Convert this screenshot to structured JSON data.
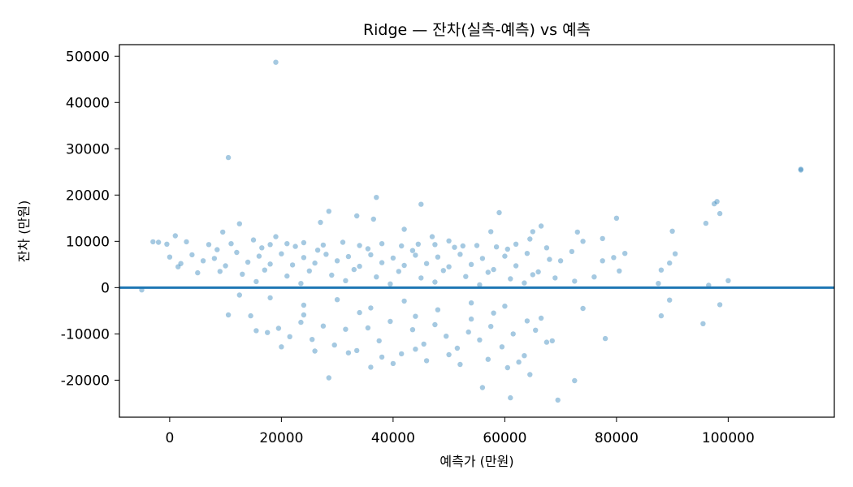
{
  "chart_data": {
    "type": "scatter",
    "title": "Ridge — 잔차(실측-예측) vs 예측",
    "xlabel": "예측가 (만원)",
    "ylabel": "잔차 (만원)",
    "xlim": [
      -9000,
      119000
    ],
    "ylim": [
      -28000,
      52500
    ],
    "xticks": [
      0,
      20000,
      40000,
      60000,
      80000,
      100000
    ],
    "yticks": [
      -20000,
      -10000,
      0,
      10000,
      20000,
      30000,
      40000,
      50000
    ],
    "grid": false,
    "reference_line": {
      "y": 0,
      "color": "#1f77b4"
    },
    "marker_color": "#1f77b4",
    "marker_opacity": 0.4,
    "series": [
      {
        "points": [
          [
            19000,
            48700
          ],
          [
            10500,
            28100
          ],
          [
            113000,
            25600
          ],
          [
            113000,
            25400
          ],
          [
            37000,
            19500
          ],
          [
            98000,
            18600
          ],
          [
            97500,
            18100
          ],
          [
            45000,
            18000
          ],
          [
            28500,
            16500
          ],
          [
            59000,
            16200
          ],
          [
            98500,
            16000
          ],
          [
            33500,
            15500
          ],
          [
            80000,
            15000
          ],
          [
            36500,
            14800
          ],
          [
            96000,
            13900
          ],
          [
            27000,
            14100
          ],
          [
            12500,
            13800
          ],
          [
            66500,
            13300
          ],
          [
            42000,
            12600
          ],
          [
            9500,
            12000
          ],
          [
            57500,
            12100
          ],
          [
            65000,
            12100
          ],
          [
            73000,
            12000
          ],
          [
            90000,
            12200
          ],
          [
            1000,
            11200
          ],
          [
            19000,
            11000
          ],
          [
            47000,
            11000
          ],
          [
            50000,
            10100
          ],
          [
            77500,
            10600
          ],
          [
            74000,
            10000
          ],
          [
            -3000,
            9900
          ],
          [
            -2000,
            9800
          ],
          [
            -500,
            9400
          ],
          [
            3000,
            9900
          ],
          [
            7000,
            9300
          ],
          [
            11000,
            9500
          ],
          [
            15000,
            10300
          ],
          [
            18000,
            9300
          ],
          [
            21000,
            9500
          ],
          [
            24000,
            9700
          ],
          [
            27500,
            9200
          ],
          [
            31000,
            9800
          ],
          [
            34000,
            9100
          ],
          [
            38000,
            9500
          ],
          [
            41500,
            9000
          ],
          [
            44500,
            9400
          ],
          [
            47500,
            9300
          ],
          [
            52500,
            9000
          ],
          [
            55000,
            9100
          ],
          [
            58500,
            8800
          ],
          [
            62000,
            9400
          ],
          [
            64500,
            10500
          ],
          [
            88000,
            3800
          ],
          [
            89500,
            5300
          ],
          [
            90500,
            7300
          ],
          [
            79500,
            6500
          ],
          [
            80500,
            3600
          ],
          [
            81500,
            7400
          ],
          [
            76000,
            2300
          ],
          [
            77500,
            5800
          ],
          [
            0,
            6600
          ],
          [
            2000,
            5200
          ],
          [
            4000,
            7100
          ],
          [
            6000,
            5800
          ],
          [
            8000,
            6300
          ],
          [
            10000,
            4700
          ],
          [
            12000,
            7600
          ],
          [
            14000,
            5500
          ],
          [
            16000,
            6800
          ],
          [
            18000,
            5100
          ],
          [
            20000,
            7300
          ],
          [
            22000,
            4900
          ],
          [
            24000,
            6500
          ],
          [
            26000,
            5300
          ],
          [
            28000,
            7200
          ],
          [
            30000,
            5800
          ],
          [
            32000,
            6700
          ],
          [
            34000,
            4600
          ],
          [
            36000,
            7100
          ],
          [
            38000,
            5400
          ],
          [
            40000,
            6400
          ],
          [
            42000,
            4800
          ],
          [
            44000,
            7000
          ],
          [
            46000,
            5200
          ],
          [
            48000,
            6600
          ],
          [
            50000,
            4500
          ],
          [
            52000,
            7200
          ],
          [
            54000,
            5000
          ],
          [
            56000,
            6300
          ],
          [
            58000,
            3900
          ],
          [
            60000,
            6800
          ],
          [
            62000,
            4700
          ],
          [
            64000,
            7400
          ],
          [
            66000,
            3400
          ],
          [
            68000,
            6100
          ],
          [
            70000,
            5800
          ],
          [
            1500,
            4500
          ],
          [
            5000,
            3200
          ],
          [
            9000,
            3500
          ],
          [
            13000,
            2900
          ],
          [
            17000,
            3800
          ],
          [
            21000,
            2500
          ],
          [
            25000,
            3600
          ],
          [
            29000,
            2700
          ],
          [
            33000,
            3900
          ],
          [
            37000,
            2300
          ],
          [
            41000,
            3500
          ],
          [
            45000,
            2100
          ],
          [
            49000,
            3700
          ],
          [
            53000,
            2400
          ],
          [
            57000,
            3300
          ],
          [
            61000,
            1900
          ],
          [
            65000,
            2800
          ],
          [
            69000,
            2100
          ],
          [
            72500,
            1400
          ],
          [
            87500,
            900
          ],
          [
            96500,
            500
          ],
          [
            100000,
            1500
          ],
          [
            15500,
            1300
          ],
          [
            23500,
            900
          ],
          [
            31500,
            1500
          ],
          [
            39500,
            800
          ],
          [
            47500,
            1200
          ],
          [
            55500,
            600
          ],
          [
            63500,
            1000
          ],
          [
            8500,
            8200
          ],
          [
            16500,
            8600
          ],
          [
            22500,
            8900
          ],
          [
            26500,
            8100
          ],
          [
            35500,
            8400
          ],
          [
            43500,
            8000
          ],
          [
            51000,
            8700
          ],
          [
            60500,
            8300
          ],
          [
            67500,
            8600
          ],
          [
            72000,
            7800
          ],
          [
            -5000,
            -500
          ],
          [
            10500,
            -5900
          ],
          [
            14500,
            -6100
          ],
          [
            15500,
            -9300
          ],
          [
            17500,
            -9700
          ],
          [
            19500,
            -8800
          ],
          [
            21500,
            -10600
          ],
          [
            23500,
            -7500
          ],
          [
            25500,
            -11200
          ],
          [
            27500,
            -8300
          ],
          [
            29500,
            -12400
          ],
          [
            31500,
            -9000
          ],
          [
            33500,
            -13600
          ],
          [
            35500,
            -8700
          ],
          [
            37500,
            -11500
          ],
          [
            39500,
            -7300
          ],
          [
            41500,
            -14300
          ],
          [
            43500,
            -9100
          ],
          [
            45500,
            -12200
          ],
          [
            47500,
            -8000
          ],
          [
            49500,
            -10500
          ],
          [
            51500,
            -13100
          ],
          [
            53500,
            -9600
          ],
          [
            55500,
            -11300
          ],
          [
            57500,
            -8400
          ],
          [
            59500,
            -12800
          ],
          [
            61500,
            -10000
          ],
          [
            63500,
            -14700
          ],
          [
            65500,
            -9200
          ],
          [
            67500,
            -11800
          ],
          [
            62500,
            -16100
          ],
          [
            64500,
            -18800
          ],
          [
            61000,
            -23800
          ],
          [
            69500,
            -24300
          ],
          [
            56000,
            -21600
          ],
          [
            72500,
            -20100
          ],
          [
            28500,
            -19500
          ],
          [
            36000,
            -17200
          ],
          [
            40000,
            -16400
          ],
          [
            46000,
            -15800
          ],
          [
            52000,
            -16600
          ],
          [
            60500,
            -17300
          ],
          [
            68500,
            -11500
          ],
          [
            78000,
            -11000
          ],
          [
            74000,
            -4500
          ],
          [
            66500,
            -6600
          ],
          [
            88000,
            -6100
          ],
          [
            89500,
            -2700
          ],
          [
            95500,
            -7800
          ],
          [
            98500,
            -3700
          ],
          [
            60000,
            -4000
          ],
          [
            54000,
            -3300
          ],
          [
            48000,
            -4800
          ],
          [
            42000,
            -2900
          ],
          [
            36000,
            -4400
          ],
          [
            30000,
            -2600
          ],
          [
            24000,
            -3800
          ],
          [
            18000,
            -2200
          ],
          [
            12500,
            -1600
          ],
          [
            20000,
            -12800
          ],
          [
            26000,
            -13700
          ],
          [
            32000,
            -14100
          ],
          [
            38000,
            -15000
          ],
          [
            44000,
            -13300
          ],
          [
            50000,
            -14500
          ],
          [
            57000,
            -15500
          ],
          [
            24000,
            -5900
          ],
          [
            34000,
            -5400
          ],
          [
            44000,
            -6200
          ],
          [
            54000,
            -6800
          ],
          [
            64000,
            -7200
          ],
          [
            58000,
            -5500
          ]
        ]
      }
    ]
  }
}
